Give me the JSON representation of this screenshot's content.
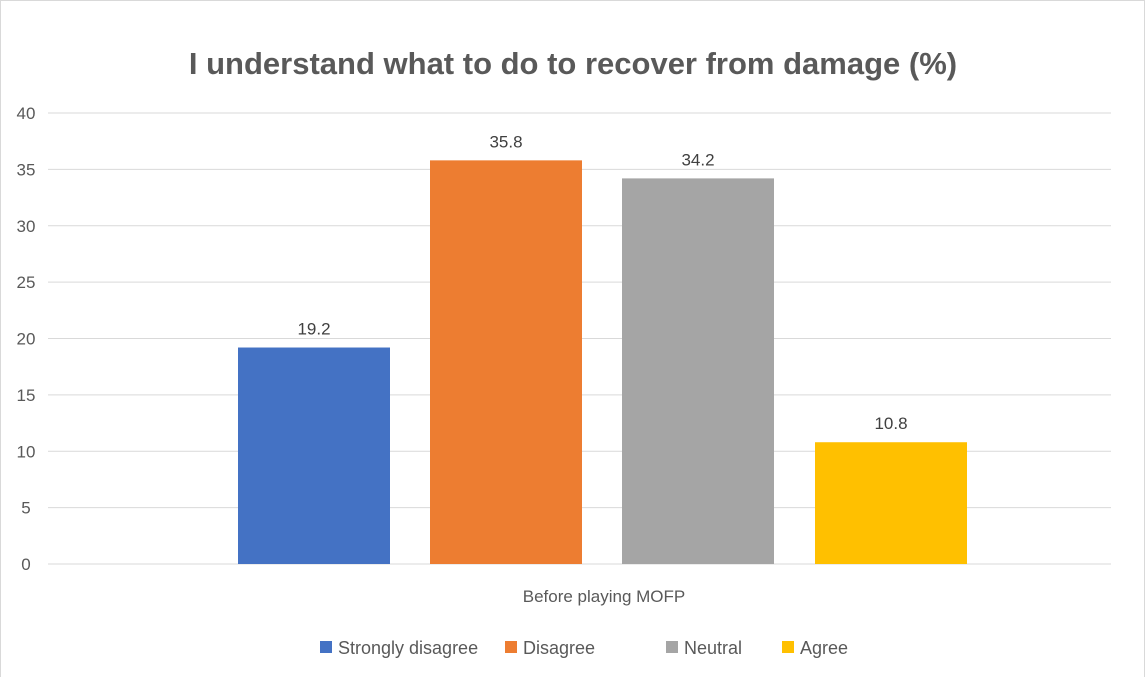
{
  "chart_data": {
    "type": "bar",
    "title": "I understand what to do to recover from damage (%)",
    "categories": [
      "Before playing MOFP"
    ],
    "series": [
      {
        "name": "Strongly disagree",
        "values": [
          19.2
        ],
        "color": "#4472c4"
      },
      {
        "name": "Disagree",
        "values": [
          35.8
        ],
        "color": "#ed7d31"
      },
      {
        "name": "Neutral",
        "values": [
          34.2
        ],
        "color": "#a5a5a5"
      },
      {
        "name": "Agree",
        "values": [
          10.8
        ],
        "color": "#ffc000"
      }
    ],
    "ylim": [
      0,
      40
    ],
    "yticks": [
      0,
      5,
      10,
      15,
      20,
      25,
      30,
      35,
      40
    ],
    "xlabel": "",
    "ylabel": "",
    "grid": true,
    "legend_position": "bottom",
    "data_labels": [
      "19.2",
      "35.8",
      "34.2",
      "10.8"
    ]
  }
}
